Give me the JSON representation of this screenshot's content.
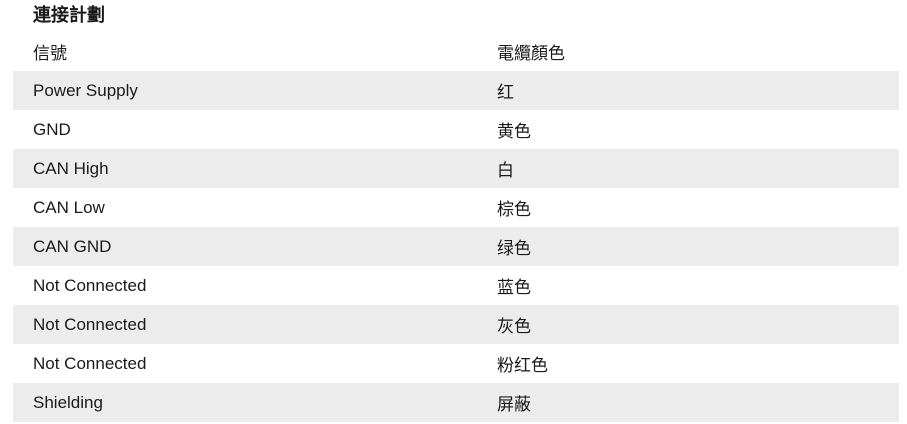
{
  "page": {
    "title": "連接計劃"
  },
  "table": {
    "columns": [
      {
        "key": "signal",
        "label": "信號"
      },
      {
        "key": "cable_color",
        "label": "電纜顏色"
      }
    ],
    "rows": [
      {
        "signal": "Power Supply",
        "cable_color": "红"
      },
      {
        "signal": "GND",
        "cable_color": "黄色"
      },
      {
        "signal": "CAN High",
        "cable_color": "白"
      },
      {
        "signal": "CAN Low",
        "cable_color": "棕色"
      },
      {
        "signal": "CAN GND",
        "cable_color": "绿色"
      },
      {
        "signal": "Not Connected",
        "cable_color": "蓝色"
      },
      {
        "signal": "Not Connected",
        "cable_color": "灰色"
      },
      {
        "signal": "Not Connected",
        "cable_color": "粉红色"
      },
      {
        "signal": "Shielding",
        "cable_color": "屏蔽"
      }
    ]
  },
  "colors": {
    "stripe_background": "#ececec",
    "text": "#1a1a1a",
    "page_background": "#ffffff"
  }
}
